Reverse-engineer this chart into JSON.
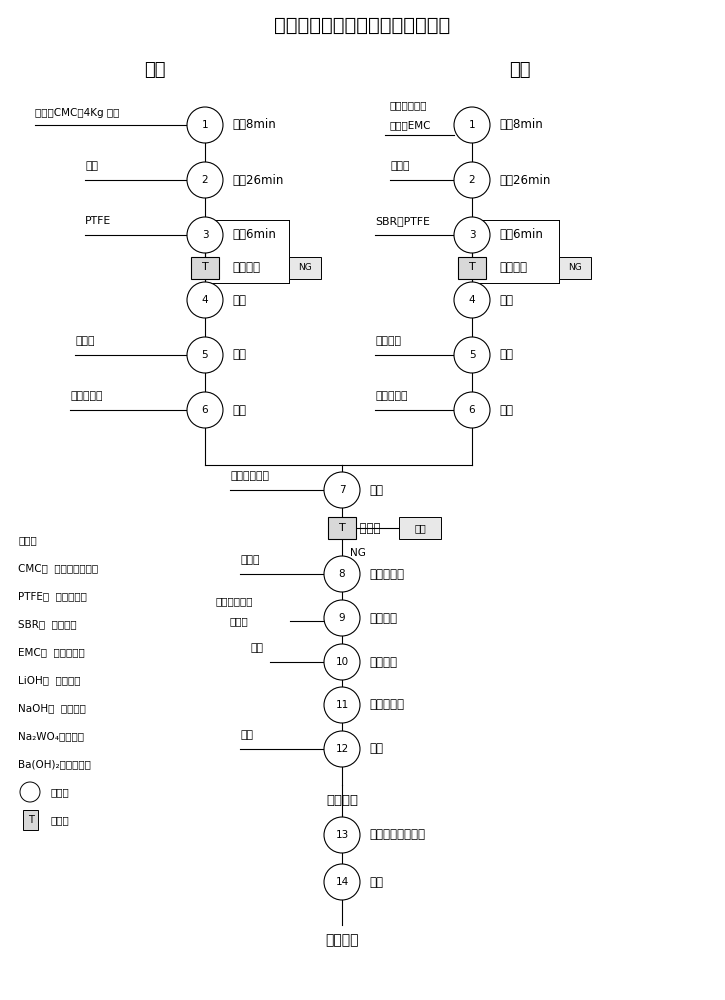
{
  "title": "超高温长寿命镍氢电池工艺流程图",
  "title_fontsize": 14,
  "section_left": "正极",
  "section_right": "负极",
  "section_fontsize": 13,
  "bg_color": "#ffffff",
  "line_color": "#000000",
  "circle_color": "#ffffff",
  "circle_edge": "#000000",
  "box_color": "#d0d0d0",
  "text_color": "#000000",
  "notes": [
    "注释：",
    "CMC：  羧甲基纤维素钠",
    "PTFE：  聚四氟乙烯",
    "SBR：  丁苯橡胶",
    "EMC：  碳酸甲乙酯",
    "LiOH：  氢氧化锂",
    "NaOH：  氢氧化钠",
    "Na₂WO₄：钨酸钠",
    "Ba(OH)₂：氢氧化钡",
    "○    ：加工",
    "T    ：检测"
  ]
}
